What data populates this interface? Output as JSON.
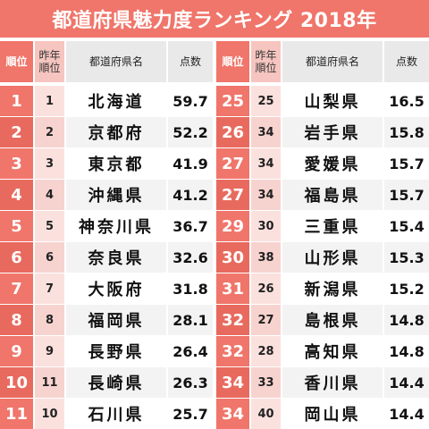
{
  "title": "都道府県魅力度ランキング 2018年",
  "headers": {
    "rank": "順位",
    "prev_rank": "昨年\n順位",
    "prefecture": "都道府県名",
    "score": "点数"
  },
  "colors": {
    "accent": "#f0756a",
    "prev_bg": "#fbe1de",
    "header_gray": "#e9e9e9"
  },
  "left_rows": [
    {
      "rank": "1",
      "prev": "1",
      "name": "北海道",
      "score": "59.7"
    },
    {
      "rank": "2",
      "prev": "2",
      "name": "京都府",
      "score": "52.2"
    },
    {
      "rank": "3",
      "prev": "3",
      "name": "東京都",
      "score": "41.9"
    },
    {
      "rank": "4",
      "prev": "4",
      "name": "沖縄県",
      "score": "41.2"
    },
    {
      "rank": "5",
      "prev": "5",
      "name": "神奈川県",
      "score": "36.7"
    },
    {
      "rank": "6",
      "prev": "6",
      "name": "奈良県",
      "score": "32.6"
    },
    {
      "rank": "7",
      "prev": "7",
      "name": "大阪府",
      "score": "31.8"
    },
    {
      "rank": "8",
      "prev": "8",
      "name": "福岡県",
      "score": "28.1"
    },
    {
      "rank": "9",
      "prev": "9",
      "name": "長野県",
      "score": "26.4"
    },
    {
      "rank": "10",
      "prev": "11",
      "name": "長崎県",
      "score": "26.3"
    },
    {
      "rank": "11",
      "prev": "10",
      "name": "石川県",
      "score": "25.7"
    }
  ],
  "right_rows": [
    {
      "rank": "25",
      "prev": "25",
      "name": "山梨県",
      "score": "16.5"
    },
    {
      "rank": "26",
      "prev": "34",
      "name": "岩手県",
      "score": "15.8"
    },
    {
      "rank": "27",
      "prev": "34",
      "name": "愛媛県",
      "score": "15.7"
    },
    {
      "rank": "27",
      "prev": "34",
      "name": "福島県",
      "score": "15.7"
    },
    {
      "rank": "29",
      "prev": "30",
      "name": "三重県",
      "score": "15.4"
    },
    {
      "rank": "30",
      "prev": "38",
      "name": "山形県",
      "score": "15.3"
    },
    {
      "rank": "31",
      "prev": "26",
      "name": "新潟県",
      "score": "15.2"
    },
    {
      "rank": "32",
      "prev": "27",
      "name": "島根県",
      "score": "14.8"
    },
    {
      "rank": "32",
      "prev": "28",
      "name": "高知県",
      "score": "14.8"
    },
    {
      "rank": "34",
      "prev": "33",
      "name": "香川県",
      "score": "14.4"
    },
    {
      "rank": "34",
      "prev": "40",
      "name": "岡山県",
      "score": "14.4"
    }
  ]
}
